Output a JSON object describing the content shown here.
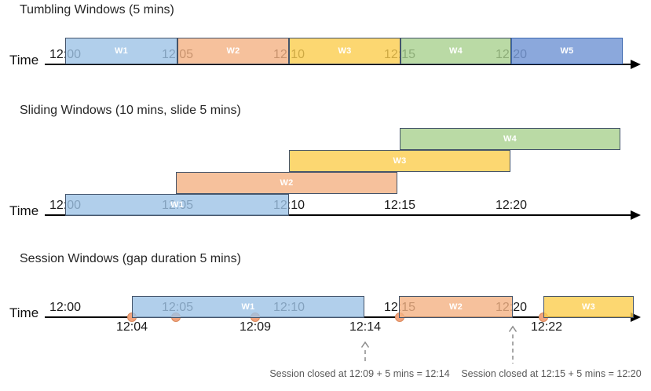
{
  "palette": {
    "window_blue": "#9DC3E6",
    "window_orange": "#F4B183",
    "window_yellow": "#FBCD4E",
    "window_green": "#A9D18E",
    "window_indigo": "#7799D6",
    "window_border": "#44546A",
    "indigo_border": "#3C68B0",
    "event_dot": "#F2A47E",
    "event_dot_border": "#DB8A5C",
    "axis": "#000000",
    "annotation_gray": "#595959"
  },
  "sections": {
    "tumbling": {
      "title": "Tumbling Windows (5 mins)",
      "time_label": "Time",
      "ticks": [
        "12:00",
        "12:05",
        "12:10",
        "12:15",
        "12:20"
      ],
      "windows": [
        {
          "label": "W1",
          "start": "12:00",
          "end": "12:05",
          "color": "blue"
        },
        {
          "label": "W2",
          "start": "12:05",
          "end": "12:10",
          "color": "orange"
        },
        {
          "label": "W3",
          "start": "12:10",
          "end": "12:15",
          "color": "yellow"
        },
        {
          "label": "W4",
          "start": "12:15",
          "end": "12:20",
          "color": "green"
        },
        {
          "label": "W5",
          "start": "12:20",
          "end": "12:25",
          "color": "indigo"
        }
      ]
    },
    "sliding": {
      "title": "Sliding Windows (10 mins, slide 5 mins)",
      "time_label": "Time",
      "ticks": [
        "12:00",
        "12:05",
        "12:10",
        "12:15",
        "12:20"
      ],
      "windows": [
        {
          "label": "W1",
          "start": "12:00",
          "end": "12:10",
          "color": "blue"
        },
        {
          "label": "W2",
          "start": "12:05",
          "end": "12:15",
          "color": "orange"
        },
        {
          "label": "W3",
          "start": "12:10",
          "end": "12:20",
          "color": "yellow"
        },
        {
          "label": "W4",
          "start": "12:15",
          "end": "12:25",
          "color": "green"
        }
      ]
    },
    "session": {
      "title": "Session Windows (gap duration 5 mins)",
      "time_label": "Time",
      "ticks": [
        "12:00",
        "12:05",
        "12:10",
        "12:15",
        "12:20"
      ],
      "windows": [
        {
          "label": "W1",
          "start": "12:04",
          "end": "12:14",
          "color": "blue"
        },
        {
          "label": "W2",
          "start": "12:15",
          "end": "12:20",
          "color": "orange"
        },
        {
          "label": "W3",
          "start": "12:22",
          "color": "yellow"
        }
      ],
      "events": [
        "12:04",
        "12:05",
        "12:09",
        "12:15",
        "12:22"
      ],
      "event_labels": [
        "12:04",
        "12:09",
        "12:14",
        "12:22"
      ],
      "annotations": [
        "Session closed at 12:09 + 5 mins = 12:14",
        "Session closed at 12:15 + 5 mins = 12:20"
      ]
    }
  }
}
